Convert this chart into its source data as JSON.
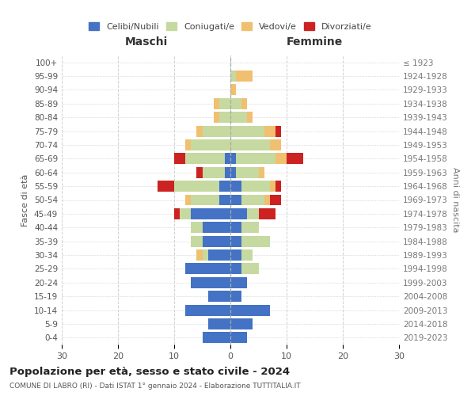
{
  "age_groups": [
    "0-4",
    "5-9",
    "10-14",
    "15-19",
    "20-24",
    "25-29",
    "30-34",
    "35-39",
    "40-44",
    "45-49",
    "50-54",
    "55-59",
    "60-64",
    "65-69",
    "70-74",
    "75-79",
    "80-84",
    "85-89",
    "90-94",
    "95-99",
    "100+"
  ],
  "birth_years": [
    "2019-2023",
    "2014-2018",
    "2009-2013",
    "2004-2008",
    "1999-2003",
    "1994-1998",
    "1989-1993",
    "1984-1988",
    "1979-1983",
    "1974-1978",
    "1969-1973",
    "1964-1968",
    "1959-1963",
    "1954-1958",
    "1949-1953",
    "1944-1948",
    "1939-1943",
    "1934-1938",
    "1929-1933",
    "1924-1928",
    "≤ 1923"
  ],
  "maschi": {
    "celibi": [
      5,
      4,
      8,
      4,
      7,
      8,
      4,
      5,
      5,
      7,
      2,
      2,
      1,
      1,
      0,
      0,
      0,
      0,
      0,
      0,
      0
    ],
    "coniugati": [
      0,
      0,
      0,
      0,
      0,
      0,
      1,
      2,
      2,
      2,
      5,
      8,
      4,
      7,
      7,
      5,
      2,
      2,
      0,
      0,
      0
    ],
    "vedovi": [
      0,
      0,
      0,
      0,
      0,
      0,
      1,
      0,
      0,
      0,
      1,
      0,
      0,
      0,
      1,
      1,
      1,
      1,
      0,
      0,
      0
    ],
    "divorziati": [
      0,
      0,
      0,
      0,
      0,
      0,
      0,
      0,
      0,
      1,
      0,
      3,
      1,
      2,
      0,
      0,
      0,
      0,
      0,
      0,
      0
    ]
  },
  "femmine": {
    "nubili": [
      3,
      4,
      7,
      2,
      3,
      2,
      2,
      2,
      2,
      3,
      2,
      2,
      1,
      1,
      0,
      0,
      0,
      0,
      0,
      0,
      0
    ],
    "coniugate": [
      0,
      0,
      0,
      0,
      0,
      3,
      2,
      5,
      3,
      2,
      4,
      5,
      4,
      7,
      7,
      6,
      3,
      2,
      0,
      1,
      0
    ],
    "vedove": [
      0,
      0,
      0,
      0,
      0,
      0,
      0,
      0,
      0,
      0,
      1,
      1,
      1,
      2,
      2,
      2,
      1,
      1,
      1,
      3,
      0
    ],
    "divorziate": [
      0,
      0,
      0,
      0,
      0,
      0,
      0,
      0,
      0,
      3,
      2,
      1,
      0,
      3,
      0,
      1,
      0,
      0,
      0,
      0,
      0
    ]
  },
  "colors": {
    "celibi": "#4472c4",
    "coniugati": "#c5d9a0",
    "vedovi": "#f0c070",
    "divorziati": "#cc2222"
  },
  "title": "Popolazione per età, sesso e stato civile - 2024",
  "subtitle": "COMUNE DI LABRO (RI) - Dati ISTAT 1° gennaio 2024 - Elaborazione TUTTITALIA.IT",
  "xlabel_left": "Maschi",
  "xlabel_right": "Femmine",
  "ylabel_left": "Fasce di età",
  "ylabel_right": "Anni di nascita",
  "xlim": 30,
  "legend_labels": [
    "Celibi/Nubili",
    "Coniugati/e",
    "Vedovi/e",
    "Divorziati/e"
  ],
  "background_color": "#ffffff",
  "grid_color": "#cccccc"
}
